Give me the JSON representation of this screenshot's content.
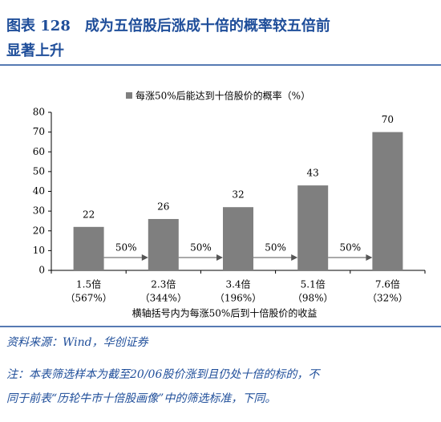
{
  "header": {
    "title_lines": [
      "图表 128　成为五倍股后涨成十倍的概率较五倍前",
      "显著上升"
    ]
  },
  "chart_data": {
    "type": "bar",
    "legend_label": "每涨50%后能达到十倍股价的概率（%）",
    "categories": [
      "1.5倍",
      "2.3倍",
      "3.4倍",
      "5.1倍",
      "7.6倍"
    ],
    "category_notes": [
      "（567%）",
      "（344%）",
      "（196%）",
      "（98%）",
      "（32%）"
    ],
    "values": [
      22,
      26,
      32,
      43,
      70
    ],
    "color": "#7f7f7f",
    "arrow_labels": [
      "50%",
      "50%",
      "50%",
      "50%"
    ],
    "x_label": "横轴括号内为每涨50%后到十倍股价的收益",
    "ylim": [
      0,
      80
    ],
    "yticks": [
      0,
      10,
      20,
      30,
      40,
      50,
      60,
      70,
      80
    ],
    "grid": false
  },
  "footer": {
    "source": "资料来源：Wind，华创证券",
    "note_lines": [
      "注：本表筛选样本为截至20/06股价涨到且仍处十倍的标的，不",
      "同于前表“历轮牛市十倍股画像”中的筛选标准，下同。"
    ]
  }
}
